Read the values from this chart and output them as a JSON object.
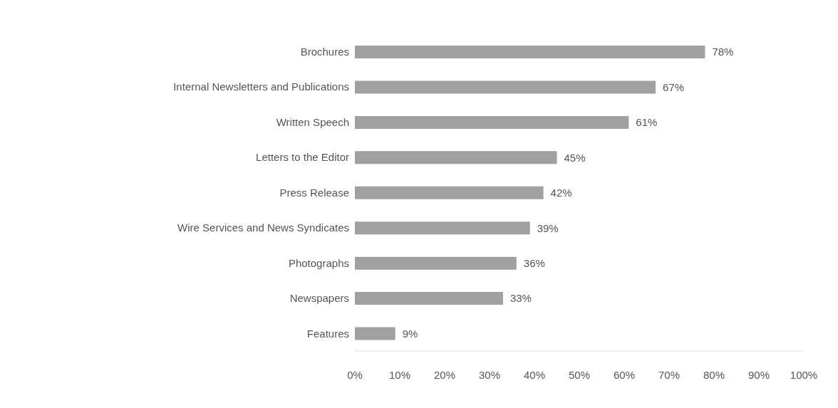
{
  "chart_data": {
    "type": "bar",
    "orientation": "horizontal",
    "categories": [
      "Brochures",
      "Internal Newsletters and Publications",
      "Written Speech",
      "Letters to the Editor",
      "Press Release",
      "Wire Services and News Syndicates",
      "Photographs",
      "Newspapers",
      "Features"
    ],
    "values": [
      78,
      67,
      61,
      45,
      42,
      39,
      36,
      33,
      9
    ],
    "value_labels": [
      "78%",
      "67%",
      "61%",
      "45%",
      "42%",
      "39%",
      "36%",
      "33%",
      "9%"
    ],
    "color": "#a0a0a0",
    "xlim": [
      0,
      100
    ],
    "xticks": [
      {
        "value": 0,
        "label": "0%"
      },
      {
        "value": 10,
        "label": "10%"
      },
      {
        "value": 20,
        "label": "20%"
      },
      {
        "value": 30,
        "label": "30%"
      },
      {
        "value": 40,
        "label": "40%"
      },
      {
        "value": 50,
        "label": "50%"
      },
      {
        "value": 60,
        "label": "60%"
      },
      {
        "value": 70,
        "label": "70%"
      },
      {
        "value": 80,
        "label": "80%"
      },
      {
        "value": 90,
        "label": "90%"
      },
      {
        "value": 100,
        "label": "100%"
      }
    ],
    "grid": false
  }
}
